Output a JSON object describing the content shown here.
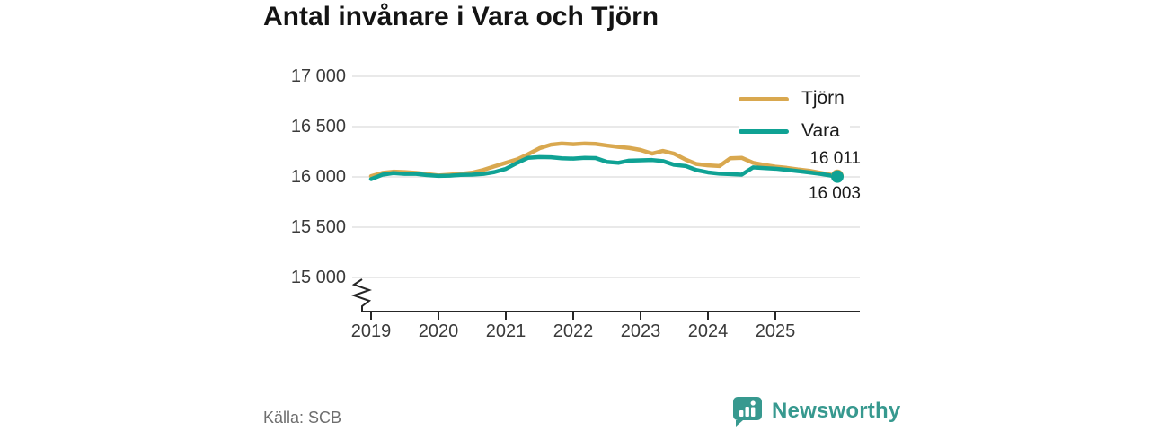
{
  "title": "Antal invånare i Vara och Tjörn",
  "source": "Källa: SCB",
  "brand": {
    "name": "Newsworthy",
    "color": "#37998f",
    "icon": "bar-chart-speech-bubble-icon"
  },
  "colors": {
    "tjorn": "#d9a84f",
    "vara": "#0fa294",
    "grid": "#dcdcdc",
    "axis": "#262626",
    "text": "#3a3a3a",
    "label": "#1a1a1a",
    "muted": "#6e6e6e"
  },
  "chart_data": {
    "type": "line",
    "title": "Antal invånare i Vara och Tjörn",
    "xlabel": "",
    "ylabel": "",
    "x_ticks": [
      2019,
      2020,
      2021,
      2022,
      2023,
      2024,
      2025
    ],
    "y_tick_labels": [
      "17 000",
      "16 500",
      "16 000",
      "15 500",
      "15 000"
    ],
    "y_tick_values": [
      17000,
      16500,
      16000,
      15500,
      15000
    ],
    "ylim": [
      15000,
      17000
    ],
    "x_range": [
      2019.0,
      2025.92
    ],
    "axis_break": true,
    "grid": "horizontal",
    "legend_position": "top-right",
    "source": "Källa: SCB",
    "series": [
      {
        "name": "Tjörn",
        "color": "#d9a84f",
        "end_label": "16 011",
        "end_dot": true,
        "x": [
          2019.0,
          2019.17,
          2019.33,
          2019.5,
          2019.67,
          2019.83,
          2020.0,
          2020.17,
          2020.33,
          2020.5,
          2020.67,
          2020.83,
          2021.0,
          2021.17,
          2021.33,
          2021.5,
          2021.67,
          2021.83,
          2022.0,
          2022.17,
          2022.33,
          2022.5,
          2022.67,
          2022.83,
          2023.0,
          2023.17,
          2023.33,
          2023.5,
          2023.67,
          2023.83,
          2024.0,
          2024.17,
          2024.33,
          2024.5,
          2024.67,
          2024.83,
          2025.0,
          2025.17,
          2025.33,
          2025.5,
          2025.67,
          2025.83,
          2025.92
        ],
        "values": [
          16008,
          16040,
          16052,
          16048,
          16040,
          16028,
          16015,
          16022,
          16030,
          16042,
          16070,
          16105,
          16140,
          16175,
          16225,
          16285,
          16320,
          16332,
          16325,
          16332,
          16328,
          16312,
          16298,
          16288,
          16268,
          16232,
          16258,
          16230,
          16172,
          16128,
          16115,
          16108,
          16185,
          16190,
          16140,
          16120,
          16102,
          16090,
          16075,
          16062,
          16040,
          16020,
          16011
        ]
      },
      {
        "name": "Vara",
        "color": "#0fa294",
        "end_label": "16 003",
        "end_dot": true,
        "x": [
          2019.0,
          2019.17,
          2019.33,
          2019.5,
          2019.67,
          2019.83,
          2020.0,
          2020.17,
          2020.33,
          2020.5,
          2020.67,
          2020.83,
          2021.0,
          2021.17,
          2021.33,
          2021.5,
          2021.67,
          2021.83,
          2022.0,
          2022.17,
          2022.33,
          2022.5,
          2022.67,
          2022.83,
          2023.0,
          2023.17,
          2023.33,
          2023.5,
          2023.67,
          2023.83,
          2024.0,
          2024.17,
          2024.33,
          2024.5,
          2024.67,
          2024.83,
          2025.0,
          2025.17,
          2025.33,
          2025.5,
          2025.67,
          2025.83,
          2025.92
        ],
        "values": [
          15978,
          16022,
          16038,
          16030,
          16030,
          16018,
          16010,
          16012,
          16020,
          16022,
          16030,
          16048,
          16080,
          16140,
          16190,
          16198,
          16195,
          16185,
          16182,
          16190,
          16188,
          16150,
          16140,
          16162,
          16165,
          16168,
          16158,
          16120,
          16108,
          16068,
          16045,
          16032,
          16028,
          16022,
          16095,
          16088,
          16082,
          16070,
          16058,
          16045,
          16030,
          16012,
          16003
        ]
      }
    ]
  }
}
